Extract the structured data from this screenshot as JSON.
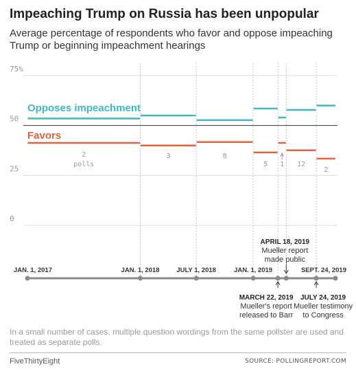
{
  "title": "Impeaching Trump on Russia has been unpopular",
  "subtitle": "Average percentage of respondents who favor and oppose impeaching Trump or beginning impeachment hearings",
  "footnote": "In a small number of cases, multiple question wordings from the same pollster are used and treated as separate polls.",
  "brand": "FiveThirtyEight",
  "source": "SOURCE: POLLINGREPORT.COM",
  "colors": {
    "opposes": "#3fb8c2",
    "favors": "#e0633a",
    "grid": "#dddddd",
    "timeline": "#8a8a8a",
    "text_muted": "#999999"
  },
  "chart_data": {
    "type": "line",
    "ylim": [
      0,
      75
    ],
    "xlim": [
      "2017-01-01",
      "2019-09-24"
    ],
    "y_ticks": [
      {
        "value": 0,
        "label": "0"
      },
      {
        "value": 25,
        "label": "25"
      },
      {
        "value": 50,
        "label": "50"
      },
      {
        "value": 75,
        "label": "75%"
      }
    ],
    "emphasized_gridline": 50,
    "series": [
      {
        "name": "Opposes impeachment",
        "color": "#3fb8c2",
        "segments": [
          {
            "start": "2017-01-01",
            "end": "2017-12-31",
            "value": 53.5
          },
          {
            "start": "2018-01-01",
            "end": "2018-06-30",
            "value": 55
          },
          {
            "start": "2018-07-01",
            "end": "2018-12-31",
            "value": 52.7
          },
          {
            "start": "2019-01-01",
            "end": "2019-03-21",
            "value": 58.5
          },
          {
            "start": "2019-03-22",
            "end": "2019-04-17",
            "value": 54
          },
          {
            "start": "2019-04-18",
            "end": "2019-07-23",
            "value": 57.8
          },
          {
            "start": "2019-07-24",
            "end": "2019-09-24",
            "value": 60
          }
        ]
      },
      {
        "name": "Favors",
        "color": "#e0633a",
        "segments": [
          {
            "start": "2017-01-01",
            "end": "2017-12-31",
            "value": 41.3
          },
          {
            "start": "2018-01-01",
            "end": "2018-06-30",
            "value": 40
          },
          {
            "start": "2018-07-01",
            "end": "2018-12-31",
            "value": 41.7
          },
          {
            "start": "2019-01-01",
            "end": "2019-03-21",
            "value": 36.5
          },
          {
            "start": "2019-03-22",
            "end": "2019-04-17",
            "value": 41.3
          },
          {
            "start": "2019-04-18",
            "end": "2019-07-23",
            "value": 37.6
          },
          {
            "start": "2019-07-24",
            "end": "2019-09-24",
            "value": 33.4
          }
        ]
      }
    ],
    "poll_counts": [
      {
        "line1": "2",
        "line2": "polls",
        "start": "2017-01-01",
        "end": "2017-12-31"
      },
      {
        "line1": "3",
        "line2": "",
        "start": "2018-01-01",
        "end": "2018-06-30"
      },
      {
        "line1": "8",
        "line2": "",
        "start": "2018-07-01",
        "end": "2018-12-31"
      },
      {
        "line1": "5",
        "line2": "",
        "start": "2019-01-01",
        "end": "2019-03-21"
      },
      {
        "line1": "1",
        "line2": "",
        "start": "2019-03-22",
        "end": "2019-04-17"
      },
      {
        "line1": "12",
        "line2": "",
        "start": "2019-04-18",
        "end": "2019-07-23"
      },
      {
        "line1": "2",
        "line2": "",
        "start": "2019-07-24",
        "end": "2019-09-24"
      }
    ],
    "timeline_dates": [
      {
        "date": "2017-01-01",
        "label": "JAN. 1, 2017"
      },
      {
        "date": "2018-01-01",
        "label": "JAN. 1, 2018"
      },
      {
        "date": "2018-07-01",
        "label": "JULY 1, 2018"
      },
      {
        "date": "2019-01-01",
        "label": "JAN. 1, 2019"
      },
      {
        "date": "2019-09-24",
        "label": "SEPT. 24, 2019"
      }
    ],
    "events": [
      {
        "date": "2019-03-22",
        "label": "MARCH 22, 2019",
        "desc1": "Mueller's report",
        "desc2": "released to Barr",
        "position": "below"
      },
      {
        "date": "2019-04-18",
        "label": "APRIL 18, 2019",
        "desc1": "Mueller report",
        "desc2": "made public",
        "position": "above"
      },
      {
        "date": "2019-07-24",
        "label": "JULY 24, 2019",
        "desc1": "Mueller testimony",
        "desc2": "to Congress",
        "position": "below"
      }
    ]
  }
}
